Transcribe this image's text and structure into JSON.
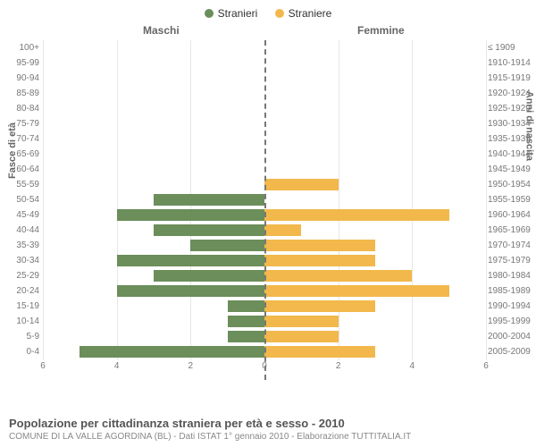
{
  "legend": {
    "male": "Stranieri",
    "female": "Straniere"
  },
  "headers": {
    "male": "Maschi",
    "female": "Femmine"
  },
  "axis_titles": {
    "left": "Fasce di età",
    "right": "Anni di nascita"
  },
  "colors": {
    "male": "#6b8e5a",
    "female": "#f2b84b",
    "grid": "#e6e6e6",
    "text": "#777777",
    "background": "#ffffff"
  },
  "chart": {
    "type": "population-pyramid",
    "x_max": 6,
    "x_ticks": [
      6,
      4,
      2,
      0,
      2,
      4,
      6
    ],
    "bar_height_pct": 78,
    "font_size_labels": 10,
    "font_size_legend": 12,
    "font_size_title": 13,
    "rows": [
      {
        "age": "100+",
        "year": "≤ 1909",
        "m": 0,
        "f": 0
      },
      {
        "age": "95-99",
        "year": "1910-1914",
        "m": 0,
        "f": 0
      },
      {
        "age": "90-94",
        "year": "1915-1919",
        "m": 0,
        "f": 0
      },
      {
        "age": "85-89",
        "year": "1920-1924",
        "m": 0,
        "f": 0
      },
      {
        "age": "80-84",
        "year": "1925-1929",
        "m": 0,
        "f": 0
      },
      {
        "age": "75-79",
        "year": "1930-1934",
        "m": 0,
        "f": 0
      },
      {
        "age": "70-74",
        "year": "1935-1939",
        "m": 0,
        "f": 0
      },
      {
        "age": "65-69",
        "year": "1940-1944",
        "m": 0,
        "f": 0
      },
      {
        "age": "60-64",
        "year": "1945-1949",
        "m": 0,
        "f": 0
      },
      {
        "age": "55-59",
        "year": "1950-1954",
        "m": 0,
        "f": 2
      },
      {
        "age": "50-54",
        "year": "1955-1959",
        "m": 3,
        "f": 0
      },
      {
        "age": "45-49",
        "year": "1960-1964",
        "m": 4,
        "f": 5
      },
      {
        "age": "40-44",
        "year": "1965-1969",
        "m": 3,
        "f": 1
      },
      {
        "age": "35-39",
        "year": "1970-1974",
        "m": 2,
        "f": 3
      },
      {
        "age": "30-34",
        "year": "1975-1979",
        "m": 4,
        "f": 3
      },
      {
        "age": "25-29",
        "year": "1980-1984",
        "m": 3,
        "f": 4
      },
      {
        "age": "20-24",
        "year": "1985-1989",
        "m": 4,
        "f": 5
      },
      {
        "age": "15-19",
        "year": "1990-1994",
        "m": 1,
        "f": 3
      },
      {
        "age": "10-14",
        "year": "1995-1999",
        "m": 1,
        "f": 2
      },
      {
        "age": "5-9",
        "year": "2000-2004",
        "m": 1,
        "f": 2
      },
      {
        "age": "0-4",
        "year": "2005-2009",
        "m": 5,
        "f": 3
      }
    ]
  },
  "footer": {
    "title": "Popolazione per cittadinanza straniera per età e sesso - 2010",
    "subtitle": "COMUNE DI LA VALLE AGORDINA (BL) - Dati ISTAT 1° gennaio 2010 - Elaborazione TUTTITALIA.IT"
  }
}
